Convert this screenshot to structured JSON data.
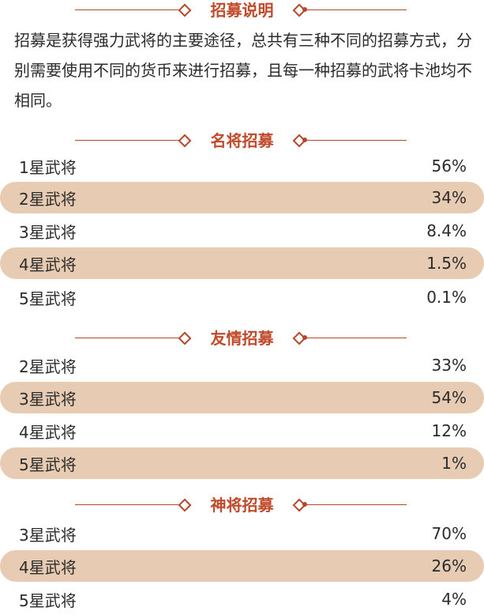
{
  "intro": {
    "title": "招募说明",
    "text": "招募是获得强力武将的主要途径，总共有三种不同的招募方式，分别需要使用不同的货币来进行招募，且每一种招募的武将卡池均不相同。"
  },
  "sections": [
    {
      "title": "名将招募",
      "rows": [
        {
          "star": "1星武将",
          "pct": "56%"
        },
        {
          "star": "2星武将",
          "pct": "34%"
        },
        {
          "star": "3星武将",
          "pct": "8.4%"
        },
        {
          "star": "4星武将",
          "pct": "1.5%"
        },
        {
          "star": "5星武将",
          "pct": "0.1%"
        }
      ]
    },
    {
      "title": "友情招募",
      "rows": [
        {
          "star": "2星武将",
          "pct": "33%"
        },
        {
          "star": "3星武将",
          "pct": "54%"
        },
        {
          "star": "4星武将",
          "pct": "12%"
        },
        {
          "star": "5星武将",
          "pct": "1%"
        }
      ]
    },
    {
      "title": "神将招募",
      "rows": [
        {
          "star": "3星武将",
          "pct": "70%"
        },
        {
          "star": "4星武将",
          "pct": "26%"
        },
        {
          "star": "5星武将",
          "pct": "4%"
        }
      ]
    }
  ],
  "colors": {
    "accent": "#c14a2b",
    "line": "#b5472a",
    "row_shade": "#e7ccb3"
  }
}
